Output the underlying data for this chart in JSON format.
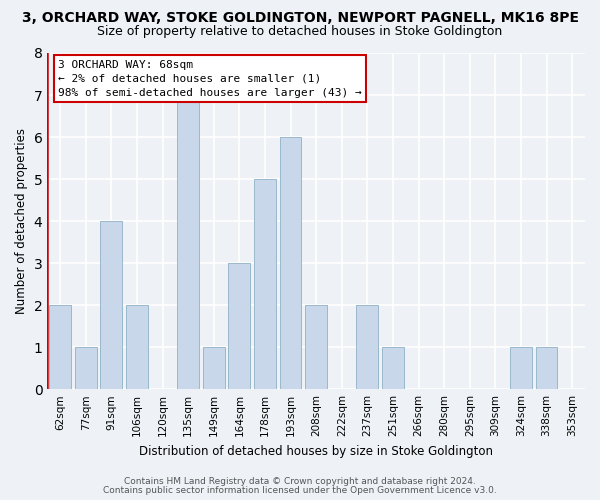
{
  "title": "3, ORCHARD WAY, STOKE GOLDINGTON, NEWPORT PAGNELL, MK16 8PE",
  "subtitle": "Size of property relative to detached houses in Stoke Goldington",
  "xlabel": "Distribution of detached houses by size in Stoke Goldington",
  "ylabel": "Number of detached properties",
  "bin_labels": [
    "62sqm",
    "77sqm",
    "91sqm",
    "106sqm",
    "120sqm",
    "135sqm",
    "149sqm",
    "164sqm",
    "178sqm",
    "193sqm",
    "208sqm",
    "222sqm",
    "237sqm",
    "251sqm",
    "266sqm",
    "280sqm",
    "295sqm",
    "309sqm",
    "324sqm",
    "338sqm",
    "353sqm"
  ],
  "bar_heights": [
    2,
    1,
    4,
    2,
    0,
    7,
    1,
    3,
    5,
    6,
    2,
    0,
    2,
    1,
    0,
    0,
    0,
    0,
    1,
    1,
    0
  ],
  "bar_color": "#c8d8ea",
  "bar_edge_color": "#9ab8cc",
  "highlight_color": "#cc0000",
  "property_label": "3 ORCHARD WAY: 68sqm",
  "smaller_text": "← 2% of detached houses are smaller (1)",
  "larger_text": "98% of semi-detached houses are larger (43) →",
  "annotation_box_facecolor": "#ffffff",
  "annotation_box_edgecolor": "#cc0000",
  "ylim": [
    0,
    8
  ],
  "yticks": [
    0,
    1,
    2,
    3,
    4,
    5,
    6,
    7,
    8
  ],
  "footer_line1": "Contains HM Land Registry data © Crown copyright and database right 2024.",
  "footer_line2": "Contains public sector information licensed under the Open Government Licence v3.0.",
  "bg_color": "#eef2f7",
  "grid_color": "#ffffff",
  "title_fontsize": 10,
  "subtitle_fontsize": 9,
  "tick_fontsize": 7.5,
  "label_fontsize": 8.5,
  "annotation_fontsize": 8,
  "footer_fontsize": 6.5
}
